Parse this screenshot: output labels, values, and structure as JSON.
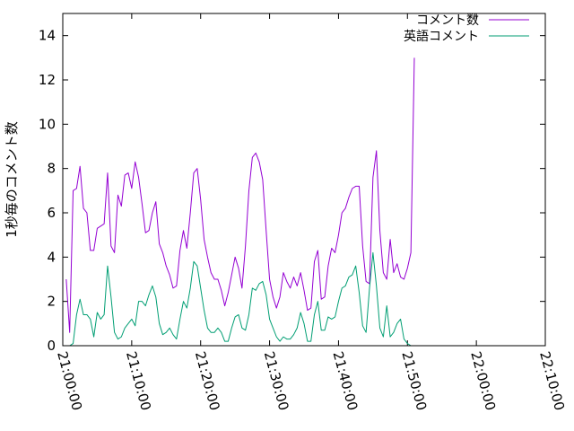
{
  "chart_data": {
    "type": "line",
    "title": "",
    "xlabel": "",
    "ylabel": "1秒毎のコメント数",
    "ylim": [
      0,
      15
    ],
    "xlim": [
      "21:00:00",
      "22:10:00"
    ],
    "grid": false,
    "legend_position": "top-right",
    "y_ticks": [
      "0",
      "2",
      "4",
      "6",
      "8",
      "10",
      "12",
      "14"
    ],
    "x_ticks": [
      "21:00:00",
      "21:10:00",
      "21:20:00",
      "21:30:00",
      "21:40:00",
      "21:50:00",
      "22:00:00",
      "22:10:00"
    ],
    "series": [
      {
        "name": "コメント数",
        "color": "#9400d3",
        "points": [
          [
            "21:00:30",
            3.0
          ],
          [
            "21:01:00",
            0.6
          ],
          [
            "21:01:30",
            7.0
          ],
          [
            "21:02:00",
            7.1
          ],
          [
            "21:02:30",
            8.1
          ],
          [
            "21:03:00",
            6.2
          ],
          [
            "21:03:30",
            6.0
          ],
          [
            "21:04:00",
            4.3
          ],
          [
            "21:04:30",
            4.3
          ],
          [
            "21:05:00",
            5.3
          ],
          [
            "21:05:30",
            5.4
          ],
          [
            "21:06:00",
            5.5
          ],
          [
            "21:06:30",
            7.8
          ],
          [
            "21:07:00",
            4.5
          ],
          [
            "21:07:30",
            4.2
          ],
          [
            "21:08:00",
            6.8
          ],
          [
            "21:08:30",
            6.3
          ],
          [
            "21:09:00",
            7.7
          ],
          [
            "21:09:30",
            7.8
          ],
          [
            "21:10:00",
            7.1
          ],
          [
            "21:10:30",
            8.3
          ],
          [
            "21:11:00",
            7.6
          ],
          [
            "21:11:30",
            6.4
          ],
          [
            "21:12:00",
            5.1
          ],
          [
            "21:12:30",
            5.2
          ],
          [
            "21:13:00",
            6.0
          ],
          [
            "21:13:30",
            6.5
          ],
          [
            "21:14:00",
            4.6
          ],
          [
            "21:14:30",
            4.2
          ],
          [
            "21:15:00",
            3.6
          ],
          [
            "21:15:30",
            3.2
          ],
          [
            "21:16:00",
            2.6
          ],
          [
            "21:16:30",
            2.7
          ],
          [
            "21:17:00",
            4.3
          ],
          [
            "21:17:30",
            5.2
          ],
          [
            "21:18:00",
            4.4
          ],
          [
            "21:18:30",
            6.0
          ],
          [
            "21:19:00",
            7.8
          ],
          [
            "21:19:30",
            8.0
          ],
          [
            "21:20:00",
            6.6
          ],
          [
            "21:20:30",
            4.8
          ],
          [
            "21:21:00",
            4.0
          ],
          [
            "21:21:30",
            3.3
          ],
          [
            "21:22:00",
            3.0
          ],
          [
            "21:22:30",
            3.0
          ],
          [
            "21:23:00",
            2.5
          ],
          [
            "21:23:30",
            1.8
          ],
          [
            "21:24:00",
            2.4
          ],
          [
            "21:24:30",
            3.2
          ],
          [
            "21:25:00",
            4.0
          ],
          [
            "21:25:30",
            3.5
          ],
          [
            "21:26:00",
            2.6
          ],
          [
            "21:26:30",
            4.5
          ],
          [
            "21:27:00",
            7.0
          ],
          [
            "21:27:30",
            8.5
          ],
          [
            "21:28:00",
            8.7
          ],
          [
            "21:28:30",
            8.3
          ],
          [
            "21:29:00",
            7.5
          ],
          [
            "21:29:30",
            5.2
          ],
          [
            "21:30:00",
            3.0
          ],
          [
            "21:30:30",
            2.2
          ],
          [
            "21:31:00",
            1.7
          ],
          [
            "21:31:30",
            2.2
          ],
          [
            "21:32:00",
            3.3
          ],
          [
            "21:32:30",
            2.9
          ],
          [
            "21:33:00",
            2.6
          ],
          [
            "21:33:30",
            3.1
          ],
          [
            "21:34:00",
            2.7
          ],
          [
            "21:34:30",
            3.3
          ],
          [
            "21:35:00",
            2.5
          ],
          [
            "21:35:30",
            1.6
          ],
          [
            "21:36:00",
            1.7
          ],
          [
            "21:36:30",
            3.8
          ],
          [
            "21:37:00",
            4.3
          ],
          [
            "21:37:30",
            2.1
          ],
          [
            "21:38:00",
            2.2
          ],
          [
            "21:38:30",
            3.6
          ],
          [
            "21:39:00",
            4.4
          ],
          [
            "21:39:30",
            4.2
          ],
          [
            "21:40:00",
            5.0
          ],
          [
            "21:40:30",
            6.0
          ],
          [
            "21:41:00",
            6.2
          ],
          [
            "21:41:30",
            6.7
          ],
          [
            "21:42:00",
            7.1
          ],
          [
            "21:42:30",
            7.2
          ],
          [
            "21:43:00",
            7.2
          ],
          [
            "21:43:30",
            4.5
          ],
          [
            "21:44:00",
            2.9
          ],
          [
            "21:44:30",
            2.8
          ],
          [
            "21:45:00",
            7.6
          ],
          [
            "21:45:30",
            8.8
          ],
          [
            "21:46:00",
            5.2
          ],
          [
            "21:46:30",
            3.3
          ],
          [
            "21:47:00",
            3.0
          ],
          [
            "21:47:30",
            4.8
          ],
          [
            "21:48:00",
            3.3
          ],
          [
            "21:48:30",
            3.7
          ],
          [
            "21:49:00",
            3.1
          ],
          [
            "21:49:30",
            3.0
          ],
          [
            "21:50:00",
            3.5
          ],
          [
            "21:50:30",
            4.2
          ],
          [
            "21:51:00",
            13.0
          ]
        ]
      },
      {
        "name": "英語コメント",
        "color": "#009e73",
        "points": [
          [
            "21:00:30",
            0.0
          ],
          [
            "21:01:00",
            0.0
          ],
          [
            "21:01:30",
            0.1
          ],
          [
            "21:02:00",
            1.4
          ],
          [
            "21:02:30",
            2.1
          ],
          [
            "21:03:00",
            1.4
          ],
          [
            "21:03:30",
            1.4
          ],
          [
            "21:04:00",
            1.2
          ],
          [
            "21:04:30",
            0.4
          ],
          [
            "21:05:00",
            1.5
          ],
          [
            "21:05:30",
            1.2
          ],
          [
            "21:06:00",
            1.4
          ],
          [
            "21:06:30",
            3.6
          ],
          [
            "21:07:00",
            2.2
          ],
          [
            "21:07:30",
            0.6
          ],
          [
            "21:08:00",
            0.3
          ],
          [
            "21:08:30",
            0.4
          ],
          [
            "21:09:00",
            0.8
          ],
          [
            "21:09:30",
            1.0
          ],
          [
            "21:10:00",
            1.2
          ],
          [
            "21:10:30",
            0.9
          ],
          [
            "21:11:00",
            2.0
          ],
          [
            "21:11:30",
            2.0
          ],
          [
            "21:12:00",
            1.8
          ],
          [
            "21:12:30",
            2.3
          ],
          [
            "21:13:00",
            2.7
          ],
          [
            "21:13:30",
            2.2
          ],
          [
            "21:14:00",
            1.0
          ],
          [
            "21:14:30",
            0.5
          ],
          [
            "21:15:00",
            0.6
          ],
          [
            "21:15:30",
            0.8
          ],
          [
            "21:16:00",
            0.5
          ],
          [
            "21:16:30",
            0.3
          ],
          [
            "21:17:00",
            1.2
          ],
          [
            "21:17:30",
            2.0
          ],
          [
            "21:18:00",
            1.7
          ],
          [
            "21:18:30",
            2.6
          ],
          [
            "21:19:00",
            3.8
          ],
          [
            "21:19:30",
            3.6
          ],
          [
            "21:20:00",
            2.6
          ],
          [
            "21:20:30",
            1.6
          ],
          [
            "21:21:00",
            0.8
          ],
          [
            "21:21:30",
            0.6
          ],
          [
            "21:22:00",
            0.6
          ],
          [
            "21:22:30",
            0.8
          ],
          [
            "21:23:00",
            0.6
          ],
          [
            "21:23:30",
            0.2
          ],
          [
            "21:24:00",
            0.2
          ],
          [
            "21:24:30",
            0.8
          ],
          [
            "21:25:00",
            1.3
          ],
          [
            "21:25:30",
            1.4
          ],
          [
            "21:26:00",
            0.8
          ],
          [
            "21:26:30",
            0.7
          ],
          [
            "21:27:00",
            1.4
          ],
          [
            "21:27:30",
            2.6
          ],
          [
            "21:28:00",
            2.5
          ],
          [
            "21:28:30",
            2.8
          ],
          [
            "21:29:00",
            2.9
          ],
          [
            "21:29:30",
            2.3
          ],
          [
            "21:30:00",
            1.2
          ],
          [
            "21:30:30",
            0.8
          ],
          [
            "21:31:00",
            0.4
          ],
          [
            "21:31:30",
            0.2
          ],
          [
            "21:32:00",
            0.4
          ],
          [
            "21:32:30",
            0.3
          ],
          [
            "21:33:00",
            0.3
          ],
          [
            "21:33:30",
            0.5
          ],
          [
            "21:34:00",
            0.8
          ],
          [
            "21:34:30",
            1.5
          ],
          [
            "21:35:00",
            1.0
          ],
          [
            "21:35:30",
            0.2
          ],
          [
            "21:36:00",
            0.2
          ],
          [
            "21:36:30",
            1.4
          ],
          [
            "21:37:00",
            2.0
          ],
          [
            "21:37:30",
            0.7
          ],
          [
            "21:38:00",
            0.7
          ],
          [
            "21:38:30",
            1.3
          ],
          [
            "21:39:00",
            1.2
          ],
          [
            "21:39:30",
            1.3
          ],
          [
            "21:40:00",
            2.0
          ],
          [
            "21:40:30",
            2.6
          ],
          [
            "21:41:00",
            2.7
          ],
          [
            "21:41:30",
            3.1
          ],
          [
            "21:42:00",
            3.2
          ],
          [
            "21:42:30",
            3.6
          ],
          [
            "21:43:00",
            2.4
          ],
          [
            "21:43:30",
            0.9
          ],
          [
            "21:44:00",
            0.6
          ],
          [
            "21:44:30",
            2.6
          ],
          [
            "21:45:00",
            4.2
          ],
          [
            "21:45:30",
            2.7
          ],
          [
            "21:46:00",
            0.8
          ],
          [
            "21:46:30",
            0.4
          ],
          [
            "21:47:00",
            1.8
          ],
          [
            "21:47:30",
            0.4
          ],
          [
            "21:48:00",
            0.6
          ],
          [
            "21:48:30",
            1.0
          ],
          [
            "21:49:00",
            1.2
          ],
          [
            "21:49:30",
            0.3
          ],
          [
            "21:50:00",
            0.1
          ],
          [
            "21:50:30",
            0.0
          ]
        ]
      }
    ]
  }
}
